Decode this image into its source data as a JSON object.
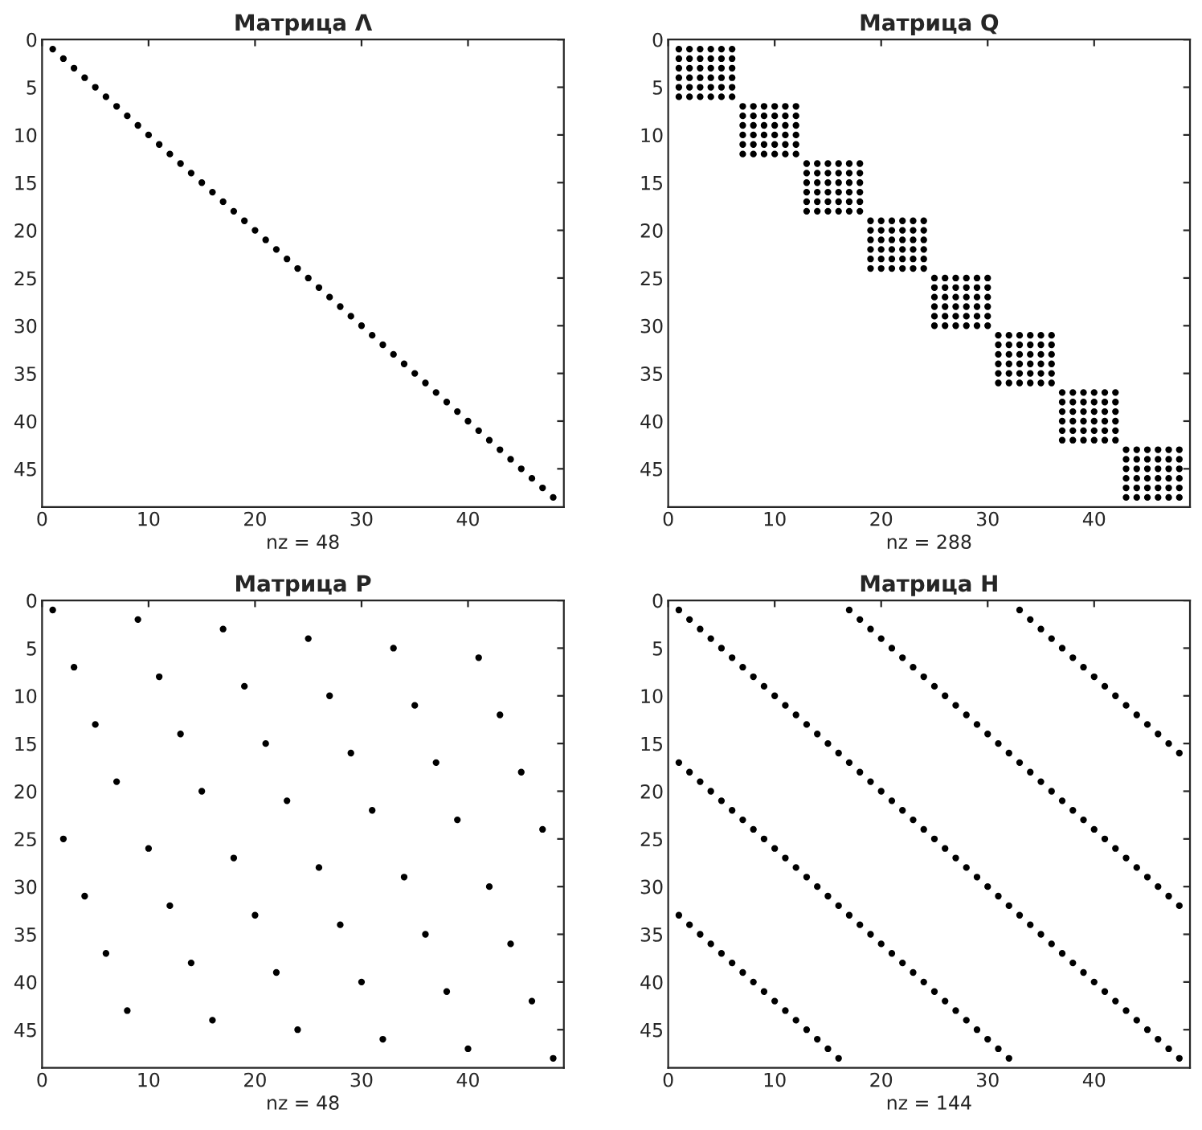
{
  "chart_data": [
    {
      "type": "scatter",
      "title": "Матрица Λ",
      "xlabel": "nz = 48",
      "xlim": [
        0,
        49
      ],
      "ylim": [
        49,
        0
      ],
      "xticks": [
        0,
        10,
        20,
        30,
        40
      ],
      "yticks": [
        0,
        5,
        10,
        15,
        20,
        25,
        30,
        35,
        40,
        45
      ],
      "marker": "circle",
      "series": [
        {
          "color": "#000000",
          "x": [
            1,
            2,
            3,
            4,
            5,
            6,
            7,
            8,
            9,
            10,
            11,
            12,
            13,
            14,
            15,
            16,
            17,
            18,
            19,
            20,
            21,
            22,
            23,
            24,
            25,
            26,
            27,
            28,
            29,
            30,
            31,
            32,
            33,
            34,
            35,
            36,
            37,
            38,
            39,
            40,
            41,
            42,
            43,
            44,
            45,
            46,
            47,
            48
          ],
          "values": [
            1,
            2,
            3,
            4,
            5,
            6,
            7,
            8,
            9,
            10,
            11,
            12,
            13,
            14,
            15,
            16,
            17,
            18,
            19,
            20,
            21,
            22,
            23,
            24,
            25,
            26,
            27,
            28,
            29,
            30,
            31,
            32,
            33,
            34,
            35,
            36,
            37,
            38,
            39,
            40,
            41,
            42,
            43,
            44,
            45,
            46,
            47,
            48
          ]
        }
      ]
    },
    {
      "type": "scatter",
      "title": "Матрица Q",
      "xlabel": "nz = 288",
      "xlim": [
        0,
        49
      ],
      "ylim": [
        49,
        0
      ],
      "xticks": [
        0,
        10,
        20,
        30,
        40
      ],
      "yticks": [
        0,
        5,
        10,
        15,
        20,
        25,
        30,
        35,
        40,
        45
      ],
      "marker": "circle",
      "series": [
        {
          "color": "#000000",
          "x": [
            1,
            2,
            3,
            4,
            5,
            6,
            1,
            2,
            3,
            4,
            5,
            6,
            1,
            2,
            3,
            4,
            5,
            6,
            1,
            2,
            3,
            4,
            5,
            6,
            1,
            2,
            3,
            4,
            5,
            6,
            1,
            2,
            3,
            4,
            5,
            6
          ],
          "values": [
            1,
            1,
            1,
            1,
            1,
            1,
            2,
            2,
            2,
            2,
            2,
            2,
            3,
            3,
            3,
            3,
            3,
            3,
            4,
            4,
            4,
            4,
            4,
            4,
            5,
            5,
            5,
            5,
            5,
            5,
            6,
            6,
            6,
            6,
            6,
            6
          ]
        },
        {
          "color": "#000000",
          "x": [
            7,
            8,
            9,
            10,
            11,
            12,
            7,
            8,
            9,
            10,
            11,
            12,
            7,
            8,
            9,
            10,
            11,
            12,
            7,
            8,
            9,
            10,
            11,
            12,
            7,
            8,
            9,
            10,
            11,
            12,
            7,
            8,
            9,
            10,
            11,
            12
          ],
          "values": [
            7,
            7,
            7,
            7,
            7,
            7,
            8,
            8,
            8,
            8,
            8,
            8,
            9,
            9,
            9,
            9,
            9,
            9,
            10,
            10,
            10,
            10,
            10,
            10,
            11,
            11,
            11,
            11,
            11,
            11,
            12,
            12,
            12,
            12,
            12,
            12
          ]
        },
        {
          "color": "#000000",
          "x": [
            13,
            14,
            15,
            16,
            17,
            18,
            13,
            14,
            15,
            16,
            17,
            18,
            13,
            14,
            15,
            16,
            17,
            18,
            13,
            14,
            15,
            16,
            17,
            18,
            13,
            14,
            15,
            16,
            17,
            18,
            13,
            14,
            15,
            16,
            17,
            18
          ],
          "values": [
            13,
            13,
            13,
            13,
            13,
            13,
            14,
            14,
            14,
            14,
            14,
            14,
            15,
            15,
            15,
            15,
            15,
            15,
            16,
            16,
            16,
            16,
            16,
            16,
            17,
            17,
            17,
            17,
            17,
            17,
            18,
            18,
            18,
            18,
            18,
            18
          ]
        },
        {
          "color": "#000000",
          "x": [
            19,
            20,
            21,
            22,
            23,
            24,
            19,
            20,
            21,
            22,
            23,
            24,
            19,
            20,
            21,
            22,
            23,
            24,
            19,
            20,
            21,
            22,
            23,
            24,
            19,
            20,
            21,
            22,
            23,
            24,
            19,
            20,
            21,
            22,
            23,
            24
          ],
          "values": [
            19,
            19,
            19,
            19,
            19,
            19,
            20,
            20,
            20,
            20,
            20,
            20,
            21,
            21,
            21,
            21,
            21,
            21,
            22,
            22,
            22,
            22,
            22,
            22,
            23,
            23,
            23,
            23,
            23,
            23,
            24,
            24,
            24,
            24,
            24,
            24
          ]
        },
        {
          "color": "#000000",
          "x": [
            25,
            26,
            27,
            28,
            29,
            30,
            25,
            26,
            27,
            28,
            29,
            30,
            25,
            26,
            27,
            28,
            29,
            30,
            25,
            26,
            27,
            28,
            29,
            30,
            25,
            26,
            27,
            28,
            29,
            30,
            25,
            26,
            27,
            28,
            29,
            30
          ],
          "values": [
            25,
            25,
            25,
            25,
            25,
            25,
            26,
            26,
            26,
            26,
            26,
            26,
            27,
            27,
            27,
            27,
            27,
            27,
            28,
            28,
            28,
            28,
            28,
            28,
            29,
            29,
            29,
            29,
            29,
            29,
            30,
            30,
            30,
            30,
            30,
            30
          ]
        },
        {
          "color": "#000000",
          "x": [
            31,
            32,
            33,
            34,
            35,
            36,
            31,
            32,
            33,
            34,
            35,
            36,
            31,
            32,
            33,
            34,
            35,
            36,
            31,
            32,
            33,
            34,
            35,
            36,
            31,
            32,
            33,
            34,
            35,
            36,
            31,
            32,
            33,
            34,
            35,
            36
          ],
          "values": [
            31,
            31,
            31,
            31,
            31,
            31,
            32,
            32,
            32,
            32,
            32,
            32,
            33,
            33,
            33,
            33,
            33,
            33,
            34,
            34,
            34,
            34,
            34,
            34,
            35,
            35,
            35,
            35,
            35,
            35,
            36,
            36,
            36,
            36,
            36,
            36
          ]
        },
        {
          "color": "#000000",
          "x": [
            37,
            38,
            39,
            40,
            41,
            42,
            37,
            38,
            39,
            40,
            41,
            42,
            37,
            38,
            39,
            40,
            41,
            42,
            37,
            38,
            39,
            40,
            41,
            42,
            37,
            38,
            39,
            40,
            41,
            42,
            37,
            38,
            39,
            40,
            41,
            42
          ],
          "values": [
            37,
            37,
            37,
            37,
            37,
            37,
            38,
            38,
            38,
            38,
            38,
            38,
            39,
            39,
            39,
            39,
            39,
            39,
            40,
            40,
            40,
            40,
            40,
            40,
            41,
            41,
            41,
            41,
            41,
            41,
            42,
            42,
            42,
            42,
            42,
            42
          ]
        },
        {
          "color": "#000000",
          "x": [
            43,
            44,
            45,
            46,
            47,
            48,
            43,
            44,
            45,
            46,
            47,
            48,
            43,
            44,
            45,
            46,
            47,
            48,
            43,
            44,
            45,
            46,
            47,
            48,
            43,
            44,
            45,
            46,
            47,
            48,
            43,
            44,
            45,
            46,
            47,
            48
          ],
          "values": [
            43,
            43,
            43,
            43,
            43,
            43,
            44,
            44,
            44,
            44,
            44,
            44,
            45,
            45,
            45,
            45,
            45,
            45,
            46,
            46,
            46,
            46,
            46,
            46,
            47,
            47,
            47,
            47,
            47,
            47,
            48,
            48,
            48,
            48,
            48,
            48
          ]
        }
      ]
    },
    {
      "type": "scatter",
      "title": "Матрица P",
      "xlabel": "nz = 48",
      "xlim": [
        0,
        49
      ],
      "ylim": [
        49,
        0
      ],
      "xticks": [
        0,
        10,
        20,
        30,
        40
      ],
      "yticks": [
        0,
        5,
        10,
        15,
        20,
        25,
        30,
        35,
        40,
        45
      ],
      "marker": "circle",
      "series": [
        {
          "color": "#000000",
          "x": [
            1,
            9,
            17,
            25,
            33,
            41,
            3,
            11,
            19,
            27,
            35,
            43,
            5,
            13,
            21,
            29,
            37,
            45,
            7,
            15,
            23,
            31,
            39,
            47,
            2,
            10,
            18,
            26,
            34,
            42,
            4,
            12,
            20,
            28,
            36,
            44,
            6,
            14,
            22,
            30,
            38,
            46,
            8,
            16,
            24,
            32,
            40,
            48
          ],
          "values": [
            1,
            2,
            3,
            4,
            5,
            6,
            7,
            8,
            9,
            10,
            11,
            12,
            13,
            14,
            15,
            16,
            17,
            18,
            19,
            20,
            21,
            22,
            23,
            24,
            25,
            26,
            27,
            28,
            29,
            30,
            31,
            32,
            33,
            34,
            35,
            36,
            37,
            38,
            39,
            40,
            41,
            42,
            43,
            44,
            45,
            46,
            47,
            48
          ]
        }
      ]
    },
    {
      "type": "scatter",
      "title": "Матрица H",
      "xlabel": "nz = 144",
      "xlim": [
        0,
        49
      ],
      "ylim": [
        49,
        0
      ],
      "xticks": [
        0,
        10,
        20,
        30,
        40
      ],
      "yticks": [
        0,
        5,
        10,
        15,
        20,
        25,
        30,
        35,
        40,
        45
      ],
      "marker": "circle",
      "series": [
        {
          "color": "#000000",
          "x": [
            1,
            2,
            3,
            4,
            5,
            6,
            7,
            8,
            9,
            10,
            11,
            12,
            13,
            14,
            15,
            16,
            17,
            18,
            19,
            20,
            21,
            22,
            23,
            24,
            25,
            26,
            27,
            28,
            29,
            30,
            31,
            32,
            33,
            34,
            35,
            36,
            37,
            38,
            39,
            40,
            41,
            42,
            43,
            44,
            45,
            46,
            47,
            48
          ],
          "values": [
            1,
            2,
            3,
            4,
            5,
            6,
            7,
            8,
            9,
            10,
            11,
            12,
            13,
            14,
            15,
            16,
            17,
            18,
            19,
            20,
            21,
            22,
            23,
            24,
            25,
            26,
            27,
            28,
            29,
            30,
            31,
            32,
            33,
            34,
            35,
            36,
            37,
            38,
            39,
            40,
            41,
            42,
            43,
            44,
            45,
            46,
            47,
            48
          ]
        },
        {
          "color": "#000000",
          "x": [
            17,
            18,
            19,
            20,
            21,
            22,
            23,
            24,
            25,
            26,
            27,
            28,
            29,
            30,
            31,
            32,
            33,
            34,
            35,
            36,
            37,
            38,
            39,
            40,
            41,
            42,
            43,
            44,
            45,
            46,
            47,
            48
          ],
          "values": [
            1,
            2,
            3,
            4,
            5,
            6,
            7,
            8,
            9,
            10,
            11,
            12,
            13,
            14,
            15,
            16,
            17,
            18,
            19,
            20,
            21,
            22,
            23,
            24,
            25,
            26,
            27,
            28,
            29,
            30,
            31,
            32
          ]
        },
        {
          "color": "#000000",
          "x": [
            33,
            34,
            35,
            36,
            37,
            38,
            39,
            40,
            41,
            42,
            43,
            44,
            45,
            46,
            47,
            48
          ],
          "values": [
            1,
            2,
            3,
            4,
            5,
            6,
            7,
            8,
            9,
            10,
            11,
            12,
            13,
            14,
            15,
            16
          ]
        },
        {
          "color": "#000000",
          "x": [
            1,
            2,
            3,
            4,
            5,
            6,
            7,
            8,
            9,
            10,
            11,
            12,
            13,
            14,
            15,
            16,
            17,
            18,
            19,
            20,
            21,
            22,
            23,
            24,
            25,
            26,
            27,
            28,
            29,
            30,
            31,
            32
          ],
          "values": [
            17,
            18,
            19,
            20,
            21,
            22,
            23,
            24,
            25,
            26,
            27,
            28,
            29,
            30,
            31,
            32,
            33,
            34,
            35,
            36,
            37,
            38,
            39,
            40,
            41,
            42,
            43,
            44,
            45,
            46,
            47,
            48
          ]
        },
        {
          "color": "#000000",
          "x": [
            1,
            2,
            3,
            4,
            5,
            6,
            7,
            8,
            9,
            10,
            11,
            12,
            13,
            14,
            15,
            16
          ],
          "values": [
            33,
            34,
            35,
            36,
            37,
            38,
            39,
            40,
            41,
            42,
            43,
            44,
            45,
            46,
            47,
            48
          ]
        }
      ]
    }
  ]
}
